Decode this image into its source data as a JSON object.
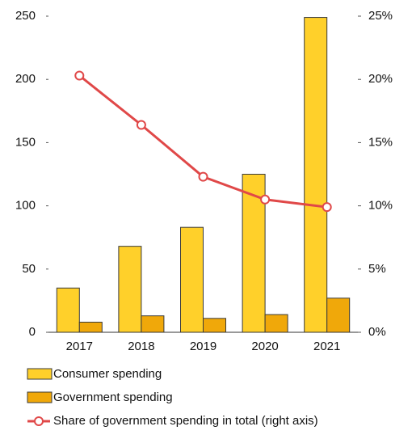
{
  "chart_data": {
    "type": "bar",
    "categories": [
      "2017",
      "2018",
      "2019",
      "2020",
      "2021"
    ],
    "series": [
      {
        "name": "Consumer spending",
        "color": "#ffd02a",
        "values": [
          35,
          68,
          83,
          125,
          249
        ]
      },
      {
        "name": "Government spending",
        "color": "#f0a80a",
        "values": [
          8,
          13,
          11,
          14,
          27
        ]
      },
      {
        "name": "Share of government spending in total (right axis)",
        "color": "#e04848",
        "type": "line",
        "axis": "y2",
        "values": [
          20.3,
          16.4,
          12.3,
          10.5,
          9.9
        ]
      }
    ],
    "ylim": [
      0,
      250
    ],
    "yticks": [
      0,
      50,
      100,
      150,
      200,
      250
    ],
    "y2lim": [
      0,
      25
    ],
    "y2ticks": [
      {
        "value": 0,
        "label": "0%"
      },
      {
        "value": 5,
        "label": "5%"
      },
      {
        "value": 10,
        "label": "10%"
      },
      {
        "value": 15,
        "label": "15%"
      },
      {
        "value": 20,
        "label": "20%"
      },
      {
        "value": 25,
        "label": "25%"
      }
    ],
    "grid": false
  }
}
